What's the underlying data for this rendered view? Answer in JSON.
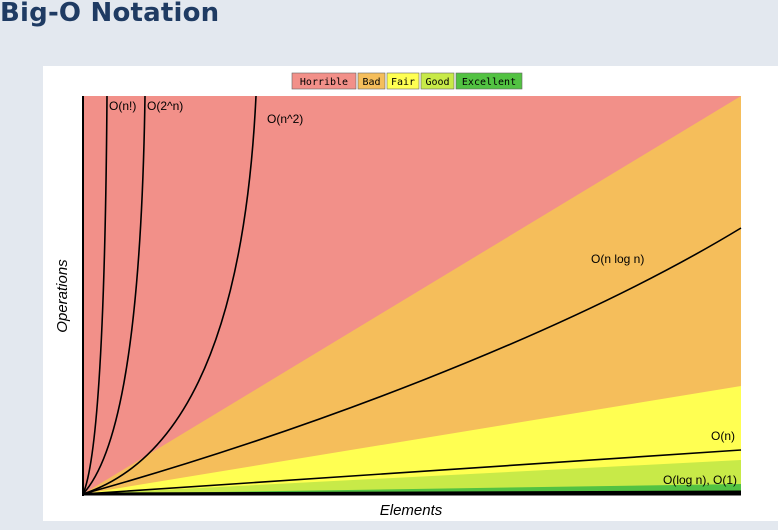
{
  "page": {
    "title": "Big-O Notation"
  },
  "chart_data": {
    "type": "area",
    "title": "",
    "xlabel": "Elements",
    "ylabel": "Operations",
    "axes": {
      "tick_labels": false,
      "grid": false
    },
    "legend": {
      "placement": "top-center",
      "entries": [
        {
          "label": "Horrible",
          "color": "#f29089"
        },
        {
          "label": "Bad",
          "color": "#f5be5b"
        },
        {
          "label": "Fair",
          "color": "#ffff52"
        },
        {
          "label": "Good",
          "color": "#c8ea48"
        },
        {
          "label": "Excellent",
          "color": "#52c242"
        }
      ]
    },
    "curves": [
      {
        "label": "O(n!)",
        "function": "factorial"
      },
      {
        "label": "O(2^n)",
        "function": "exponential"
      },
      {
        "label": "O(n^2)",
        "function": "quadratic"
      },
      {
        "label": "O(n log n)",
        "function": "linearithmic"
      },
      {
        "label": "O(n)",
        "function": "linear"
      },
      {
        "label": "O(log n), O(1)",
        "function": "logarithmic-constant"
      }
    ]
  }
}
